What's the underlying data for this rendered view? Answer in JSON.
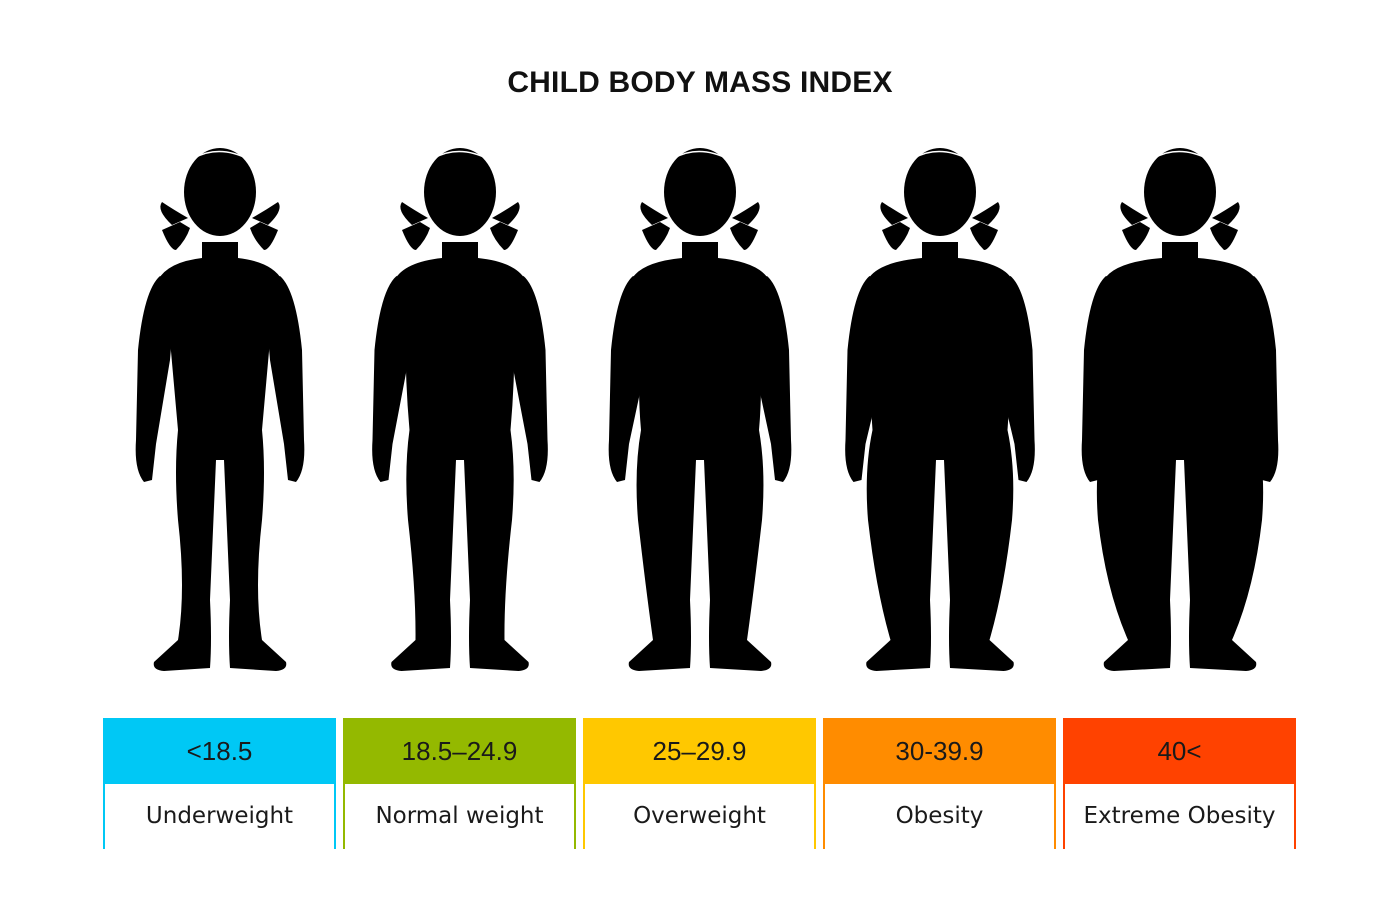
{
  "title": "CHILD BODY MASS INDEX",
  "categories": [
    {
      "range": "<18.5",
      "label": "Underweight",
      "color": "#00c8f5",
      "build": 0.0
    },
    {
      "range": "18.5–24.9",
      "label": "Normal weight",
      "color": "#94b900",
      "build": 0.25
    },
    {
      "range": "25–29.9",
      "label": "Overweight",
      "color": "#ffc800",
      "build": 0.5
    },
    {
      "range": "30-39.9",
      "label": "Obesity",
      "color": "#ff8c00",
      "build": 0.75
    },
    {
      "range": "40<",
      "label": "Extreme Obesity",
      "color": "#ff4200",
      "build": 1.0
    }
  ],
  "figure_icon": "girl-silhouette-icon"
}
